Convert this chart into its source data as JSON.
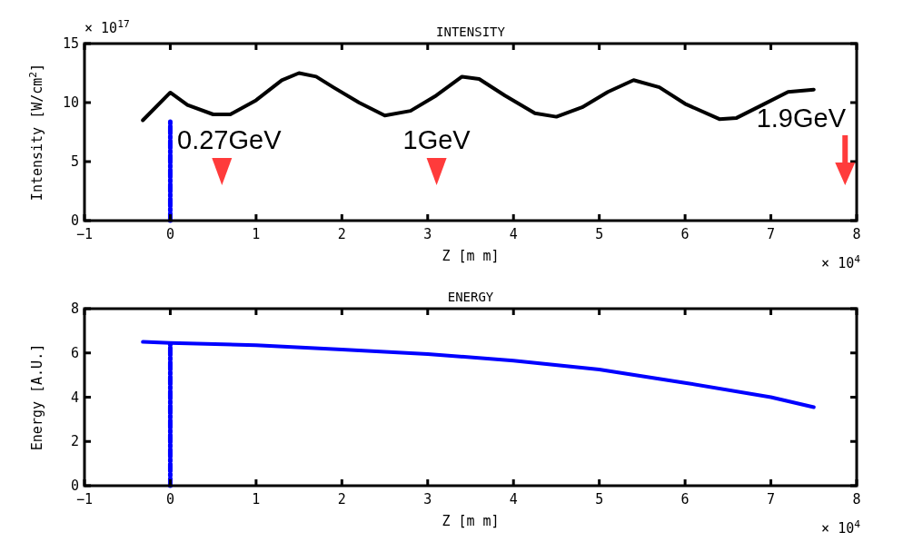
{
  "chart_data": [
    {
      "type": "line",
      "title": "INTENSITY",
      "xlabel": "Z [m m]",
      "ylabel": "Intensity [W/cm$^{2}$]",
      "xlim": [
        -1,
        8
      ],
      "xticks": [
        {
          "value": -1,
          "label": "−1"
        },
        0,
        1,
        2,
        3,
        4,
        5,
        6,
        7,
        8
      ],
      "ylim": [
        0,
        15
      ],
      "yticks": [
        0,
        5,
        10,
        15
      ],
      "grid": false,
      "series": [
        {
          "color": "#000000",
          "x": [
            -0.32,
            0,
            0.2,
            0.5,
            0.7,
            1,
            1.3,
            1.5,
            1.7,
            1.9,
            2.2,
            2.5,
            2.8,
            3.1,
            3.4,
            3.6,
            3.9,
            4.25,
            4.5,
            4.8,
            5.1,
            5.4,
            5.7,
            6,
            6.4,
            6.6,
            6.9,
            7.2,
            7.5
          ],
          "values": [
            8.5,
            10.85,
            9.8,
            9.0,
            9.0,
            10.2,
            11.9,
            12.5,
            12.2,
            11.3,
            10.0,
            8.9,
            9.3,
            10.6,
            12.2,
            12.0,
            10.6,
            9.1,
            8.8,
            9.6,
            10.9,
            11.9,
            11.3,
            9.9,
            8.6,
            8.7,
            9.8,
            10.9,
            11.1
          ]
        },
        {
          "color": "#0000ff",
          "x": [
            0,
            0
          ],
          "values": [
            0,
            8.5
          ],
          "line_style": "dashed"
        }
      ],
      "annotations": [
        "× 10$^{17}$",
        "× 10$^{4}$",
        "0.27GeV",
        "1GeV",
        "1.9GeV"
      ]
    },
    {
      "type": "line",
      "title": "ENERGY",
      "xlabel": "Z [m m]",
      "ylabel": "Energy [A.U.]",
      "xlim": [
        -1,
        8
      ],
      "xticks": [
        {
          "value": -1,
          "label": "−1"
        },
        0,
        1,
        2,
        3,
        4,
        5,
        6,
        7,
        8
      ],
      "ylim": [
        0,
        8
      ],
      "yticks": [
        0,
        2,
        4,
        6,
        8
      ],
      "grid": false,
      "series": [
        {
          "color": "#0000ff",
          "x": [
            -0.32,
            0,
            1,
            2,
            3,
            4,
            5,
            6,
            7,
            7.5
          ],
          "values": [
            6.5,
            6.45,
            6.35,
            6.15,
            5.95,
            5.65,
            5.25,
            4.65,
            4.0,
            3.55
          ]
        },
        {
          "color": "#0000ff",
          "x": [
            0,
            0
          ],
          "values": [
            0,
            6.4
          ],
          "line_style": "dashed"
        }
      ],
      "annotations": [
        "× 10$^{4}$"
      ]
    }
  ]
}
